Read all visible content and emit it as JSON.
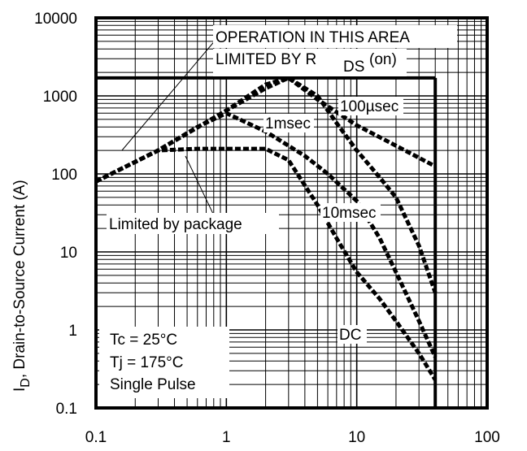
{
  "chart_data": {
    "type": "line",
    "title": "",
    "xlabel": "",
    "ylabel": "Drain-to-Source Current (A)",
    "ylabel_symbol": "I",
    "ylabel_subscript": "D",
    "x_scale": "log",
    "y_scale": "log",
    "xlim": [
      0.1,
      100
    ],
    "ylim": [
      0.1,
      10000
    ],
    "grid": true,
    "x_ticks": [
      "0.1",
      "1",
      "10",
      "100"
    ],
    "y_ticks": [
      "0.1",
      "1",
      "10",
      "100",
      "1000",
      "10000"
    ],
    "boundary": {
      "current_limit_A": 1700,
      "voltage_limit_V": 40
    },
    "series": [
      {
        "name": "100µsec",
        "x": [
          0.1,
          0.3,
          1,
          2,
          3,
          5,
          10,
          20,
          40
        ],
        "y": [
          80,
          200,
          650,
          1400,
          1700,
          900,
          420,
          230,
          125
        ]
      },
      {
        "name": "1msec",
        "x": [
          0.1,
          0.3,
          1,
          2,
          3,
          5,
          7,
          10,
          15,
          20,
          30,
          40
        ],
        "y": [
          80,
          200,
          650,
          1250,
          1700,
          1000,
          450,
          200,
          90,
          50,
          12,
          3
        ]
      },
      {
        "name": "10msec",
        "x": [
          0.1,
          0.3,
          0.6,
          1,
          2,
          4,
          6,
          10,
          15,
          20,
          30,
          40
        ],
        "y": [
          80,
          200,
          400,
          600,
          350,
          170,
          100,
          45,
          15,
          5.5,
          1.3,
          0.45
        ]
      },
      {
        "name": "DC",
        "x": [
          0.1,
          0.3,
          0.6,
          1,
          2,
          3,
          5,
          7,
          10,
          15,
          20,
          30,
          40
        ],
        "y": [
          80,
          200,
          210,
          210,
          210,
          150,
          40,
          15,
          5.5,
          2.5,
          1.3,
          0.5,
          0.23
        ]
      }
    ],
    "annotations": {
      "rds_line1": "OPERATION IN THIS AREA",
      "rds_line2": "LIMITED BY R",
      "rds_sub": "DS",
      "rds_tail": "(on)",
      "package": "Limited by package",
      "cond1": "Tc = 25°C",
      "cond2": "Tj = 175°C",
      "cond3": "Single Pulse"
    }
  }
}
